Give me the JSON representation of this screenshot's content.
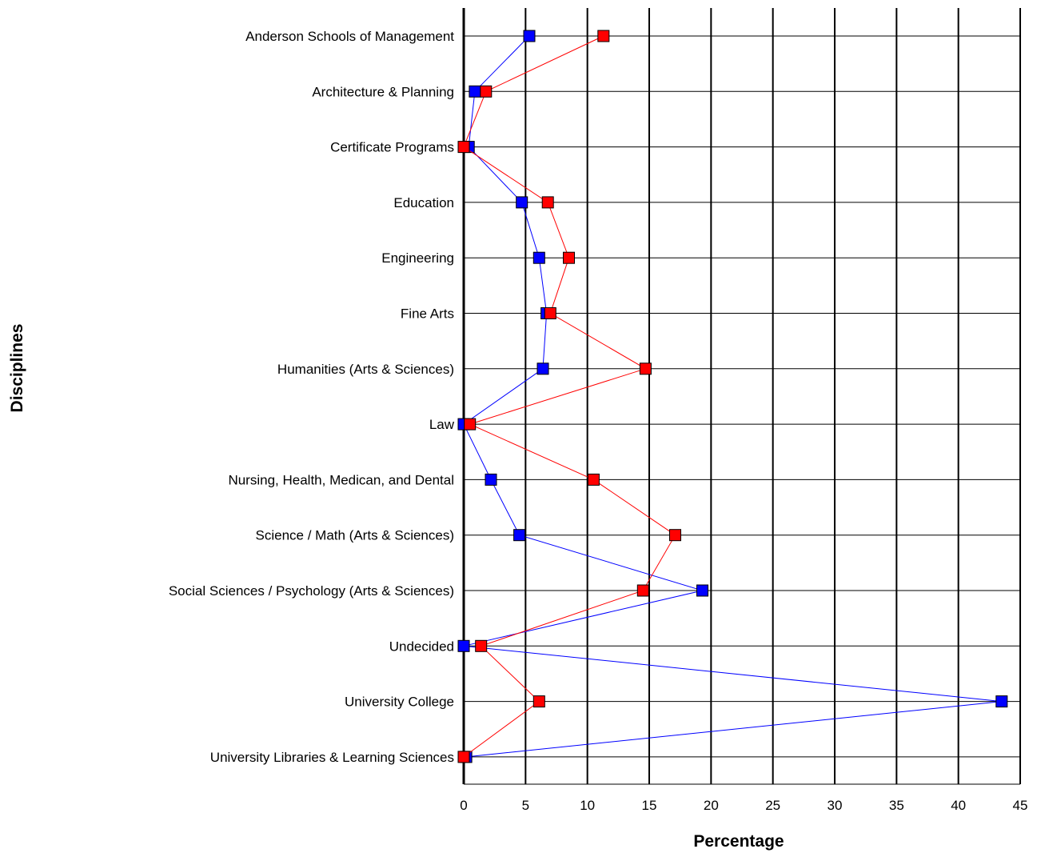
{
  "chart_data": {
    "type": "line",
    "orientation": "horizontal",
    "xlabel": "Percentage",
    "ylabel": "Disciplines",
    "xlim": [
      0,
      45
    ],
    "x_ticks": [
      "0",
      "5",
      "10",
      "15",
      "20",
      "25",
      "30",
      "35",
      "40",
      "45"
    ],
    "grid": true,
    "categories": [
      "Anderson Schools of Management",
      "Architecture & Planning",
      "Certificate Programs",
      "Education",
      "Engineering",
      "Fine Arts",
      "Humanities (Arts & Sciences)",
      "Law",
      "Nursing, Health, Medican, and Dental",
      "Science / Math (Arts & Sciences)",
      "Social Sciences / Psychology (Arts & Sciences)",
      "Undecided",
      "University College",
      "University Libraries & Learning Sciences"
    ],
    "series": [
      {
        "color": "#0000ff",
        "values": [
          5.3,
          0.9,
          0.4,
          4.7,
          6.1,
          6.7,
          6.4,
          0.0,
          2.2,
          4.5,
          19.3,
          0.0,
          43.5,
          0.2
        ]
      },
      {
        "color": "#ff0000",
        "values": [
          11.3,
          1.8,
          0.0,
          6.8,
          8.5,
          7.0,
          14.7,
          0.5,
          10.5,
          17.1,
          14.5,
          1.4,
          6.1,
          0.0
        ]
      }
    ]
  }
}
